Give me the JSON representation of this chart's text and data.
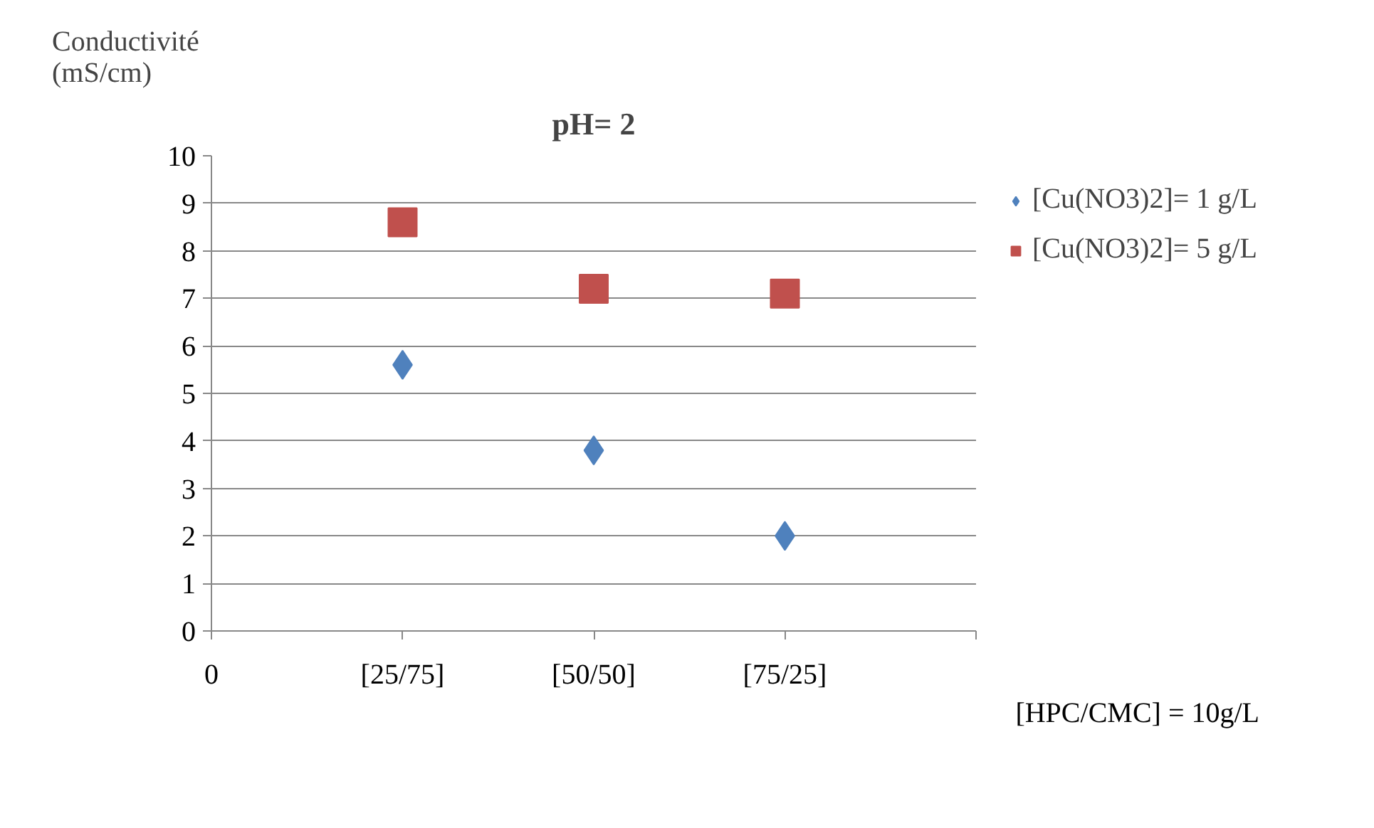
{
  "chart_data": {
    "type": "scatter",
    "title": "pH= 2",
    "ylabel": "Conductivité\n(mS/cm)",
    "categories": [
      "0",
      "[25/75]",
      "[50/50]",
      "[75/25]",
      null
    ],
    "ylim": [
      0,
      10
    ],
    "yticks": [
      0,
      1,
      2,
      3,
      4,
      5,
      6,
      7,
      8,
      9,
      10
    ],
    "series": [
      {
        "name": "[Cu(NO3)2]= 1 g/L",
        "color": "#4f81bd",
        "marker": "diamond",
        "values": [
          null,
          5.6,
          3.8,
          2.0,
          null
        ]
      },
      {
        "name": "[Cu(NO3)2]= 5 g/L",
        "color": "#c0504d",
        "marker": "square",
        "values": [
          null,
          8.6,
          7.2,
          7.1,
          null
        ]
      }
    ],
    "annotations": [
      "[HPC/CMC] = 10g/L"
    ],
    "grid": "y",
    "legend": "right"
  }
}
